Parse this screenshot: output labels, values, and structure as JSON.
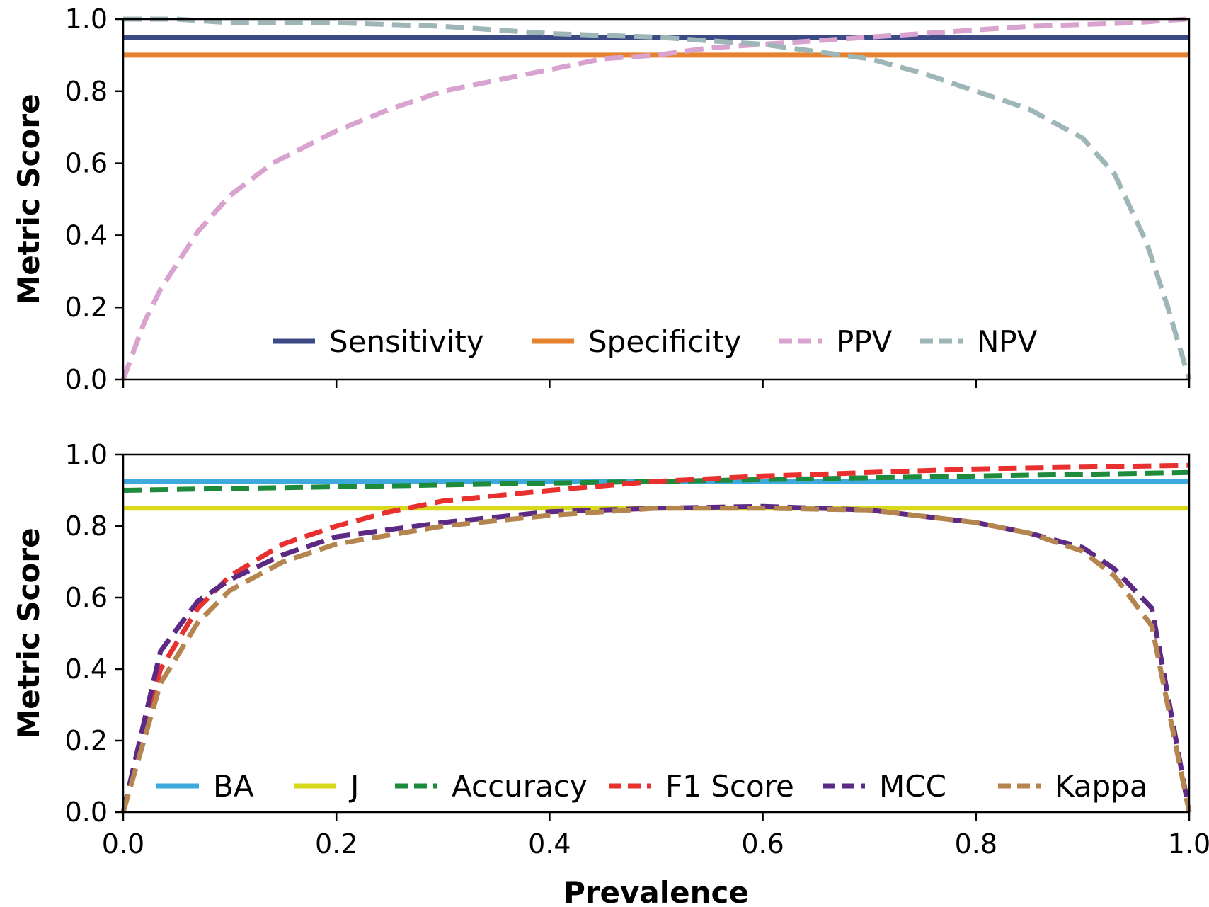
{
  "chart_data": [
    {
      "type": "line",
      "ylabel": "Metric Score",
      "xlim": [
        0.0,
        1.0
      ],
      "ylim": [
        0.0,
        1.0
      ],
      "x_ticks": [
        "0.0",
        "0.2",
        "0.4",
        "0.6",
        "0.8",
        "1.0"
      ],
      "y_ticks": [
        "0.0",
        "0.2",
        "0.4",
        "0.6",
        "0.8",
        "1.0"
      ],
      "grid": false,
      "legend_position": "bottom-center",
      "series": [
        {
          "name": "Sensitivity",
          "color": "#3b4a85",
          "dash": "solid",
          "x": [
            0,
            1
          ],
          "y": [
            0.95,
            0.95
          ]
        },
        {
          "name": "Specificity",
          "color": "#e6812e",
          "dash": "solid",
          "x": [
            0,
            1
          ],
          "y": [
            0.9,
            0.9
          ]
        },
        {
          "name": "PPV",
          "color": "#d9a3cf",
          "dash": "dashed",
          "x": [
            0,
            0.02,
            0.035,
            0.07,
            0.1,
            0.14,
            0.2,
            0.25,
            0.3,
            0.4,
            0.45,
            0.5,
            0.55,
            0.6,
            0.65,
            0.7,
            0.75,
            0.8,
            0.85,
            0.9,
            0.95,
            0.98,
            1.0
          ],
          "y": [
            0.0,
            0.16,
            0.25,
            0.41,
            0.51,
            0.6,
            0.69,
            0.75,
            0.8,
            0.86,
            0.89,
            0.9,
            0.92,
            0.93,
            0.94,
            0.95,
            0.96,
            0.97,
            0.98,
            0.985,
            0.99,
            0.997,
            1.0
          ]
        },
        {
          "name": "NPV",
          "color": "#9fb6b8",
          "dash": "dashed",
          "x": [
            0,
            0.05,
            0.1,
            0.2,
            0.3,
            0.4,
            0.5,
            0.6,
            0.65,
            0.7,
            0.75,
            0.8,
            0.85,
            0.9,
            0.93,
            0.96,
            0.98,
            1.0
          ],
          "y": [
            1.0,
            1.0,
            0.99,
            0.99,
            0.98,
            0.96,
            0.95,
            0.93,
            0.91,
            0.89,
            0.85,
            0.8,
            0.75,
            0.67,
            0.57,
            0.38,
            0.2,
            0.0
          ]
        }
      ]
    },
    {
      "type": "line",
      "xlabel": "Prevalence",
      "ylabel": "Metric Score",
      "xlim": [
        0.0,
        1.0
      ],
      "ylim": [
        0.0,
        1.0
      ],
      "x_ticks": [
        "0.0",
        "0.2",
        "0.4",
        "0.6",
        "0.8",
        "1.0"
      ],
      "y_ticks": [
        "0.0",
        "0.2",
        "0.4",
        "0.6",
        "0.8",
        "1.0"
      ],
      "grid": false,
      "legend_position": "bottom-center",
      "series": [
        {
          "name": "BA",
          "color": "#3da9dc",
          "dash": "solid",
          "x": [
            0,
            1
          ],
          "y": [
            0.925,
            0.925
          ]
        },
        {
          "name": "J",
          "color": "#d9d91c",
          "dash": "solid",
          "x": [
            0,
            1
          ],
          "y": [
            0.85,
            0.85
          ]
        },
        {
          "name": "Accuracy",
          "color": "#1e8a3c",
          "dash": "dashed",
          "x": [
            0,
            0.1,
            0.2,
            0.3,
            0.4,
            0.5,
            0.6,
            0.7,
            0.8,
            0.9,
            1.0
          ],
          "y": [
            0.9,
            0.905,
            0.91,
            0.915,
            0.92,
            0.925,
            0.93,
            0.935,
            0.94,
            0.945,
            0.95
          ]
        },
        {
          "name": "F1 Score",
          "color": "#e8312e",
          "dash": "dashed",
          "x": [
            0,
            0.035,
            0.07,
            0.1,
            0.15,
            0.2,
            0.25,
            0.3,
            0.4,
            0.5,
            0.6,
            0.7,
            0.8,
            0.9,
            1.0
          ],
          "y": [
            0.0,
            0.4,
            0.57,
            0.66,
            0.75,
            0.8,
            0.84,
            0.87,
            0.9,
            0.925,
            0.94,
            0.95,
            0.96,
            0.965,
            0.97
          ]
        },
        {
          "name": "MCC",
          "color": "#5c2a85",
          "dash": "dashed",
          "x": [
            0,
            0.035,
            0.07,
            0.1,
            0.15,
            0.2,
            0.3,
            0.4,
            0.5,
            0.6,
            0.7,
            0.8,
            0.85,
            0.9,
            0.93,
            0.965,
            1.0
          ],
          "y": [
            0.0,
            0.45,
            0.59,
            0.65,
            0.72,
            0.77,
            0.81,
            0.84,
            0.85,
            0.855,
            0.845,
            0.81,
            0.78,
            0.74,
            0.68,
            0.57,
            0.0
          ]
        },
        {
          "name": "Kappa",
          "color": "#b58550",
          "dash": "dashed",
          "x": [
            0,
            0.035,
            0.07,
            0.1,
            0.15,
            0.2,
            0.3,
            0.4,
            0.5,
            0.6,
            0.7,
            0.8,
            0.85,
            0.9,
            0.93,
            0.965,
            1.0
          ],
          "y": [
            0.0,
            0.36,
            0.53,
            0.62,
            0.7,
            0.75,
            0.8,
            0.83,
            0.85,
            0.85,
            0.845,
            0.81,
            0.78,
            0.73,
            0.66,
            0.52,
            0.0
          ]
        }
      ]
    }
  ]
}
